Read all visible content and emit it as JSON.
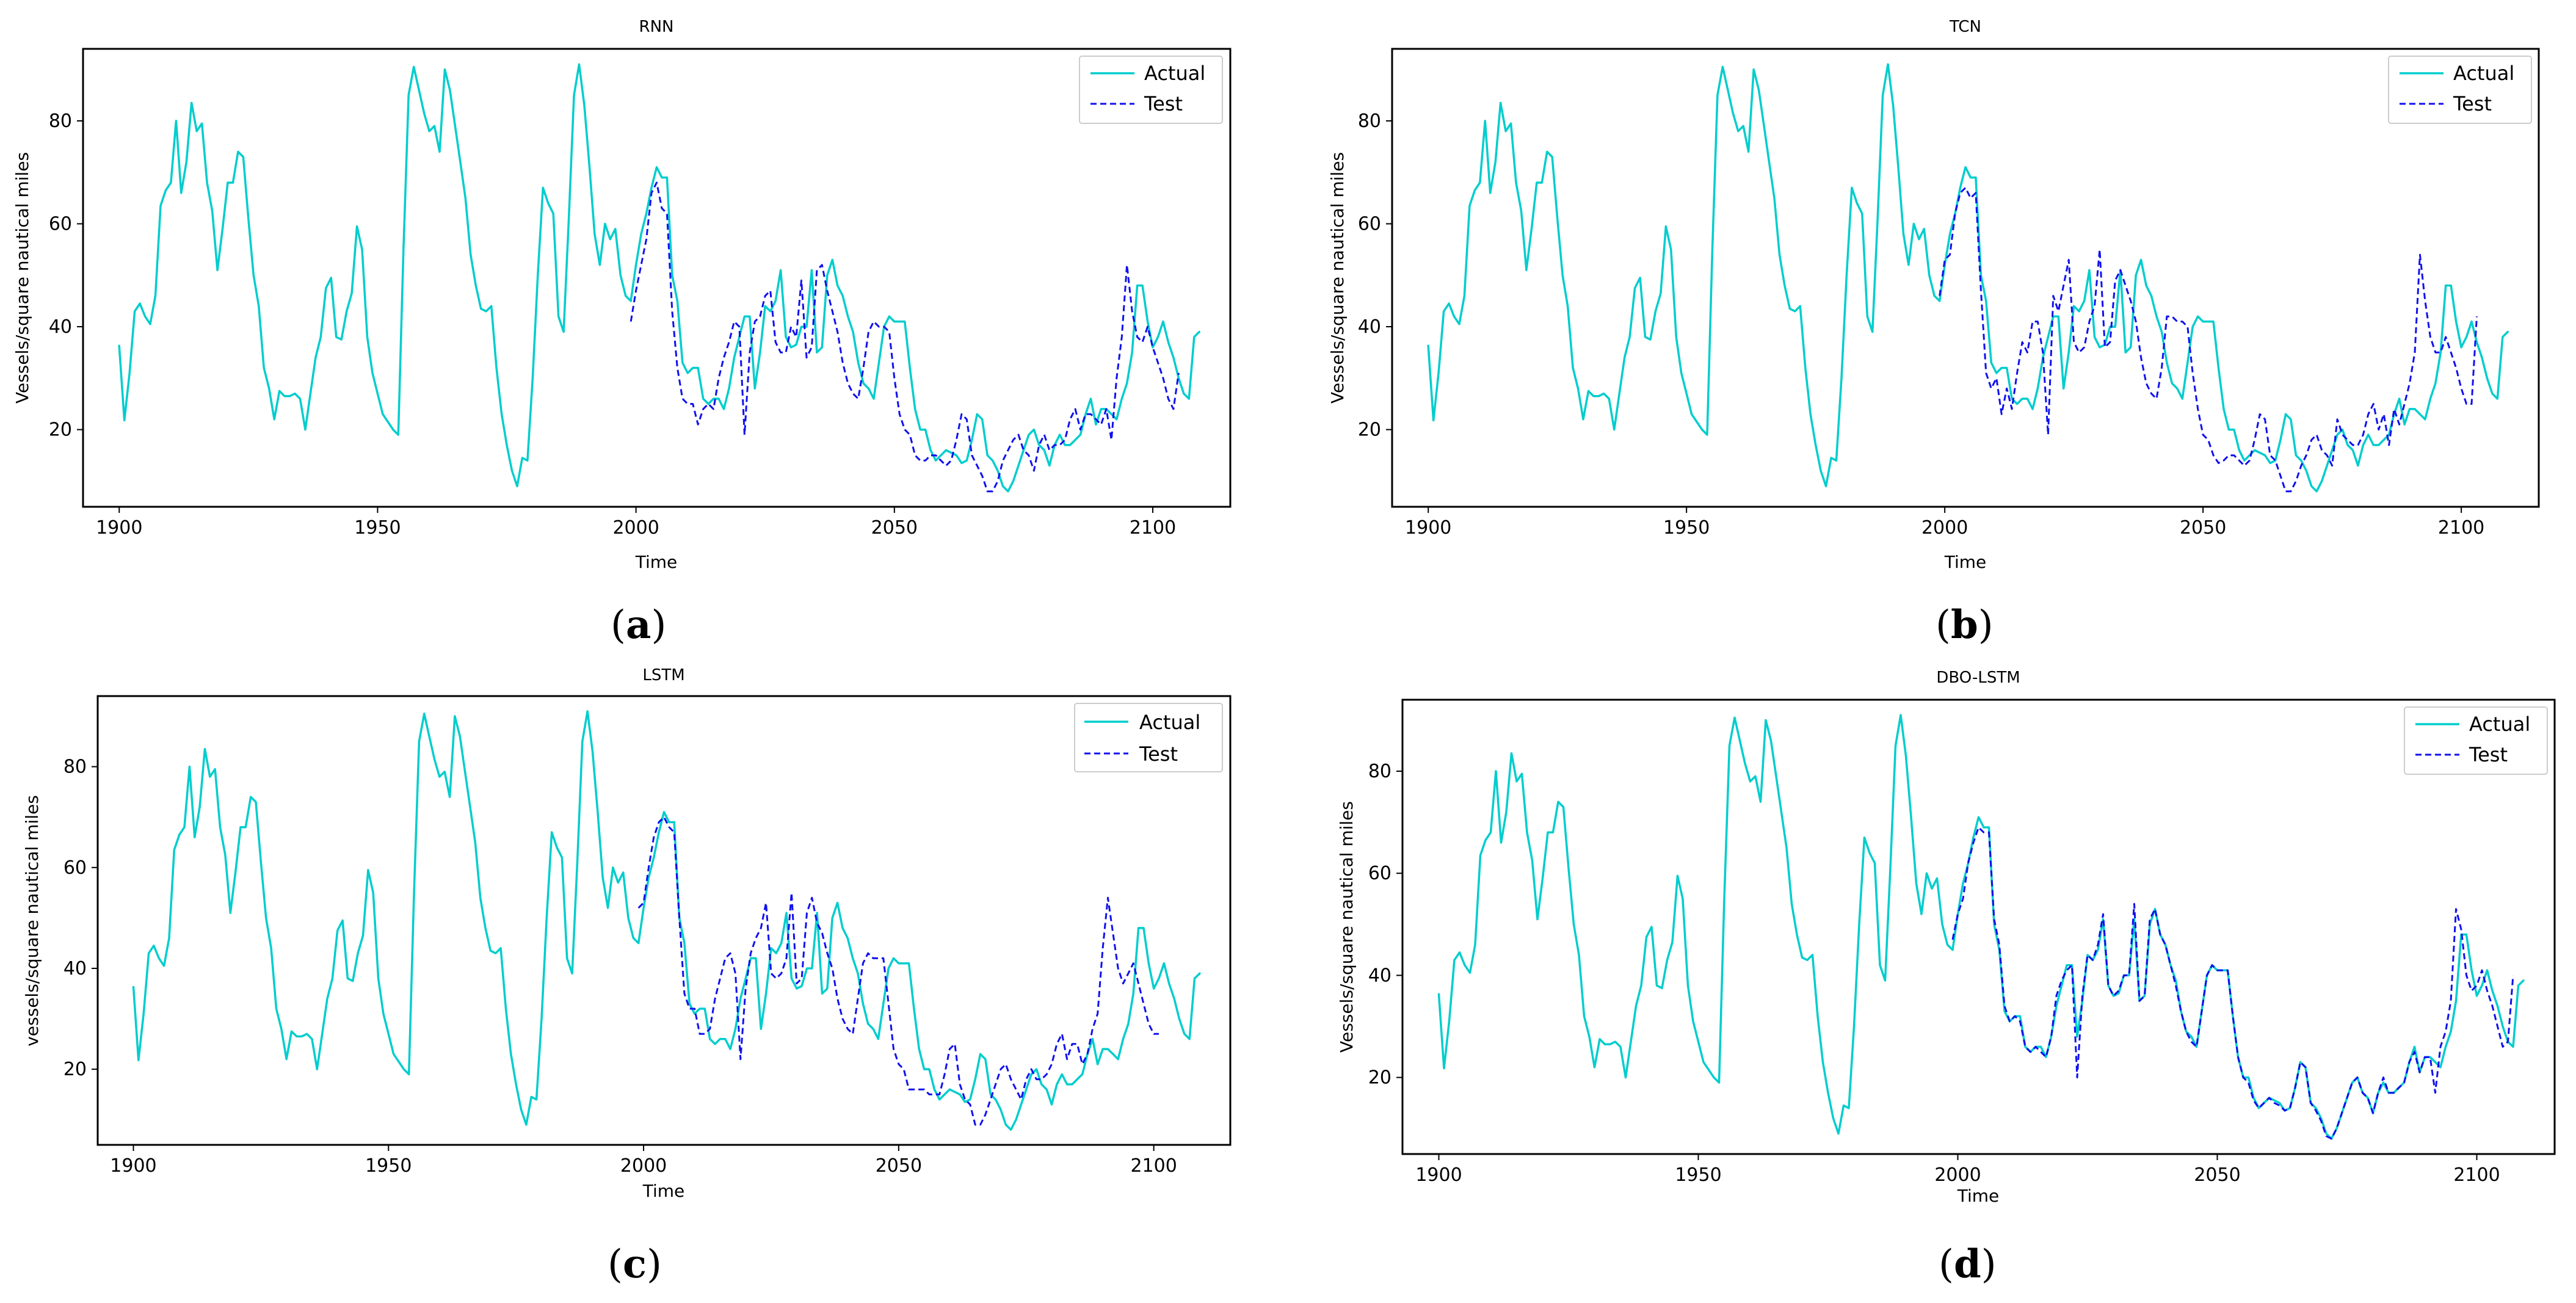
{
  "figure": {
    "colors": {
      "actual": "#00CDCD",
      "test": "#1010EE",
      "axes": "#000000"
    }
  },
  "chart_data": [
    {
      "type": "line",
      "panel": "a",
      "caption": "a",
      "title": "RNN",
      "xlabel": "Time",
      "ylabel": "Vessels/square nautical miles",
      "xlim": [
        1893,
        2115
      ],
      "ylim": [
        5,
        94
      ],
      "xticks": [
        1900,
        1950,
        2000,
        2050,
        2100
      ],
      "yticks": [
        20,
        40,
        60,
        80
      ],
      "legend": {
        "placement": "top-right",
        "entries": [
          "Actual",
          "Test"
        ]
      },
      "series": [
        {
          "name": "Actual",
          "style": "solid"
        },
        {
          "name": "Test",
          "style": "dashed",
          "start_index": 99
        }
      ]
    },
    {
      "type": "line",
      "panel": "b",
      "caption": "b",
      "title": "TCN",
      "xlabel": "Time",
      "ylabel": "Vessels/square nautical miles",
      "xlim": [
        1893,
        2115
      ],
      "ylim": [
        5,
        94
      ],
      "xticks": [
        1900,
        1950,
        2000,
        2050,
        2100
      ],
      "yticks": [
        20,
        40,
        60,
        80
      ],
      "legend": {
        "placement": "top-right",
        "entries": [
          "Actual",
          "Test"
        ]
      },
      "series": [
        {
          "name": "Actual",
          "style": "solid"
        },
        {
          "name": "Test",
          "style": "dashed",
          "start_index": 99
        }
      ]
    },
    {
      "type": "line",
      "panel": "c",
      "caption": "c",
      "title": "LSTM",
      "xlabel": "Time",
      "ylabel": "vessels/square nautical miles",
      "xlim": [
        1893,
        2115
      ],
      "ylim": [
        5,
        94
      ],
      "xticks": [
        1900,
        1950,
        2000,
        2050,
        2100
      ],
      "yticks": [
        20,
        40,
        60,
        80
      ],
      "legend": {
        "placement": "top-right",
        "entries": [
          "Actual",
          "Test"
        ]
      },
      "series": [
        {
          "name": "Actual",
          "style": "solid"
        },
        {
          "name": "Test",
          "style": "dashed",
          "start_index": 99
        }
      ]
    },
    {
      "type": "line",
      "panel": "d",
      "caption": "d",
      "title": "DBO-LSTM",
      "xlabel": "Time",
      "ylabel": "Vessels/square nautical miles",
      "xlim": [
        1893,
        2115
      ],
      "ylim": [
        5,
        94
      ],
      "xticks": [
        1900,
        1950,
        2000,
        2050,
        2100
      ],
      "yticks": [
        20,
        40,
        60,
        80
      ],
      "legend": {
        "placement": "top-right",
        "entries": [
          "Actual",
          "Test"
        ]
      },
      "series": [
        {
          "name": "Actual",
          "style": "solid"
        },
        {
          "name": "Test",
          "style": "dashed",
          "start_index": 99
        }
      ]
    }
  ],
  "shared_series": {
    "x_start": 1900,
    "x_step": 1,
    "actual": [
      36.3,
      21.8,
      31.0,
      43.0,
      44.5,
      42.0,
      40.5,
      46.0,
      63.5,
      66.5,
      68.0,
      80.0,
      66.0,
      72.0,
      83.5,
      78.0,
      79.5,
      68.0,
      62.5,
      51.0,
      59.0,
      68.0,
      68.0,
      74.0,
      73.0,
      61.0,
      50.0,
      44.0,
      32.0,
      28.0,
      22.0,
      27.5,
      26.5,
      26.5,
      27.0,
      26.0,
      20.0,
      27.0,
      34.0,
      38.0,
      47.5,
      49.5,
      38.0,
      37.5,
      43.0,
      46.5,
      59.5,
      55.0,
      38.0,
      31.0,
      27.0,
      23.0,
      21.5,
      20.0,
      19.0,
      55.0,
      85.0,
      90.5,
      86.0,
      81.5,
      78.0,
      79.0,
      74.0,
      90.0,
      86.0,
      79.0,
      72.0,
      65.0,
      54.0,
      48.0,
      43.5,
      43.0,
      44.0,
      32.0,
      23.0,
      17.0,
      12.0,
      9.0,
      14.5,
      14.0,
      30.0,
      50.0,
      67.0,
      64.0,
      62.0,
      42.0,
      39.0,
      61.0,
      85.0,
      91.0,
      83.0,
      71.0,
      58.0,
      52.0,
      60.0,
      57.0,
      59.0,
      50.0,
      46.0,
      45.0,
      52.0,
      58.0,
      62.0,
      67.0,
      71.0,
      69.0,
      69.0,
      50.0,
      45.0,
      33.0,
      31.0,
      32.0,
      32.0,
      26.0,
      25.0,
      26.0,
      26.0,
      24.0,
      28.0,
      34.0,
      38.0,
      42.0,
      42.0,
      28.0,
      35.0,
      44.0,
      43.0,
      45.0,
      51.0,
      38.0,
      36.0,
      36.5,
      40.0,
      40.0,
      51.0,
      35.0,
      36.0,
      50.0,
      53.0,
      48.0,
      46.0,
      42.0,
      39.0,
      33.0,
      29.0,
      28.0,
      26.0,
      33.0,
      40.0,
      42.0,
      41.0,
      41.0,
      41.0,
      32.0,
      24.0,
      20.0,
      20.0,
      16.0,
      14.0,
      15.0,
      16.0,
      15.5,
      15.0,
      13.5,
      14.0,
      18.0,
      23.0,
      22.0,
      15.0,
      14.0,
      12.0,
      9.0,
      8.0,
      10.0,
      13.0,
      16.0,
      19.0,
      20.0,
      17.0,
      16.0,
      13.0,
      17.0,
      19.0,
      17.0,
      17.0,
      18.0,
      19.0,
      23.0,
      26.0,
      21.0,
      24.0,
      24.0,
      23.0,
      22.0,
      26.0,
      29.0,
      35.0,
      48.0,
      48.0,
      41.0,
      36.0,
      38.0,
      41.0,
      37.0,
      34.0,
      30.0,
      27.0,
      26.0,
      38.0,
      39.0
    ],
    "test_by_panel": {
      "a": [
        41.0,
        47.0,
        52.0,
        57.0,
        66.0,
        68.0,
        63.0,
        62.0,
        43.0,
        32.0,
        26.0,
        25.0,
        25.0,
        21.0,
        24.0,
        25.0,
        24.0,
        30.0,
        34.0,
        37.0,
        41.0,
        40.0,
        19.0,
        35.0,
        41.0,
        42.0,
        46.0,
        47.0,
        37.0,
        35.0,
        35.0,
        40.0,
        38.0,
        49.0,
        34.0,
        36.0,
        51.0,
        52.0,
        47.0,
        43.0,
        39.0,
        33.0,
        29.0,
        27.0,
        26.0,
        32.0,
        39.0,
        41.0,
        40.0,
        40.0,
        39.0,
        30.0,
        23.0,
        20.0,
        19.0,
        15.0,
        14.0,
        14.0,
        15.0,
        15.0,
        14.0,
        13.0,
        14.0,
        18.0,
        23.0,
        22.0,
        15.0,
        13.0,
        11.0,
        8.0,
        8.0,
        10.0,
        14.0,
        16.0,
        18.0,
        19.0,
        16.0,
        15.0,
        12.0,
        17.0,
        19.0,
        16.0,
        17.0,
        17.0,
        18.0,
        22.0,
        24.0,
        20.0,
        23.0,
        23.0,
        22.0,
        21.0,
        24.0,
        18.0,
        30.0,
        38.0,
        52.0,
        43.0,
        38.0,
        37.0,
        40.0,
        36.0,
        33.0,
        30.0,
        26.0,
        24.0,
        31.0
      ],
      "b": [
        46.0,
        53.0,
        54.0,
        62.0,
        66.0,
        67.0,
        65.0,
        66.0,
        47.0,
        31.0,
        28.0,
        30.0,
        23.0,
        28.0,
        24.0,
        31.0,
        37.0,
        35.0,
        41.0,
        41.0,
        35.0,
        19.0,
        46.0,
        43.0,
        48.0,
        53.0,
        37.0,
        35.0,
        36.0,
        41.0,
        44.0,
        55.0,
        36.0,
        37.0,
        49.0,
        51.0,
        48.0,
        45.0,
        41.0,
        34.0,
        29.0,
        27.0,
        26.0,
        32.0,
        42.0,
        42.0,
        41.0,
        41.0,
        40.0,
        31.0,
        24.0,
        19.0,
        18.0,
        15.0,
        13.5,
        14.0,
        15.0,
        15.0,
        14.0,
        13.0,
        14.0,
        18.0,
        23.0,
        22.0,
        15.0,
        14.0,
        11.0,
        8.0,
        8.0,
        10.0,
        13.0,
        15.0,
        18.0,
        19.0,
        16.0,
        15.0,
        13.0,
        22.0,
        19.0,
        18.0,
        17.0,
        17.0,
        19.0,
        23.0,
        25.0,
        20.0,
        23.0,
        17.0,
        24.0,
        21.0,
        25.0,
        29.0,
        35.0,
        54.0,
        45.0,
        38.0,
        35.0,
        35.0,
        38.0,
        35.0,
        32.0,
        28.0,
        25.0,
        25.0,
        42.0
      ],
      "c": [
        52.0,
        53.0,
        60.0,
        66.0,
        69.0,
        70.0,
        68.0,
        67.0,
        50.0,
        35.0,
        32.0,
        32.0,
        27.0,
        27.0,
        28.0,
        34.0,
        38.0,
        42.0,
        43.0,
        39.0,
        22.0,
        36.0,
        43.0,
        46.0,
        48.0,
        53.0,
        39.0,
        38.0,
        39.0,
        42.0,
        55.0,
        37.0,
        38.0,
        51.0,
        54.0,
        49.0,
        47.0,
        43.0,
        40.0,
        34.0,
        30.0,
        28.0,
        27.0,
        34.0,
        41.0,
        43.0,
        42.0,
        42.0,
        42.0,
        33.0,
        24.0,
        21.0,
        20.0,
        16.0,
        16.0,
        16.0,
        16.0,
        15.0,
        15.0,
        15.0,
        19.0,
        24.0,
        25.0,
        17.0,
        14.0,
        13.0,
        9.0,
        9.0,
        11.0,
        14.0,
        17.0,
        20.0,
        21.0,
        18.0,
        16.0,
        14.0,
        18.0,
        20.0,
        18.0,
        18.0,
        19.0,
        21.0,
        25.0,
        27.0,
        22.0,
        25.0,
        25.0,
        21.0,
        23.0,
        28.0,
        31.0,
        44.0,
        54.0,
        47.0,
        40.0,
        37.0,
        39.0,
        41.0,
        37.0,
        33.0,
        29.0,
        27.0,
        27.0
      ],
      "d": [
        47.0,
        52.0,
        55.0,
        62.0,
        66.0,
        69.0,
        68.0,
        68.0,
        51.0,
        46.0,
        34.0,
        31.0,
        32.0,
        31.0,
        26.0,
        25.0,
        26.0,
        25.0,
        24.0,
        28.0,
        36.0,
        39.0,
        41.0,
        42.0,
        20.0,
        36.0,
        44.0,
        43.0,
        46.0,
        52.0,
        38.0,
        36.0,
        37.0,
        40.0,
        40.0,
        54.0,
        35.0,
        36.0,
        51.0,
        53.0,
        48.0,
        46.0,
        42.0,
        38.0,
        33.0,
        29.0,
        27.0,
        26.0,
        33.0,
        40.0,
        42.0,
        41.0,
        41.0,
        41.0,
        32.0,
        24.0,
        20.0,
        19.0,
        15.5,
        14.0,
        15.0,
        16.0,
        15.0,
        14.5,
        13.5,
        14.0,
        18.0,
        23.0,
        22.0,
        15.0,
        13.5,
        11.5,
        8.5,
        8.0,
        10.0,
        13.0,
        16.0,
        19.0,
        20.0,
        17.0,
        16.0,
        13.0,
        17.0,
        20.0,
        17.0,
        17.0,
        18.0,
        19.0,
        23.0,
        25.0,
        21.0,
        24.0,
        24.0,
        17.0,
        26.0,
        29.0,
        35.0,
        53.0,
        49.0,
        40.0,
        37.0,
        38.0,
        41.0,
        37.0,
        34.0,
        30.0,
        26.0,
        27.0,
        40.0
      ]
    }
  }
}
